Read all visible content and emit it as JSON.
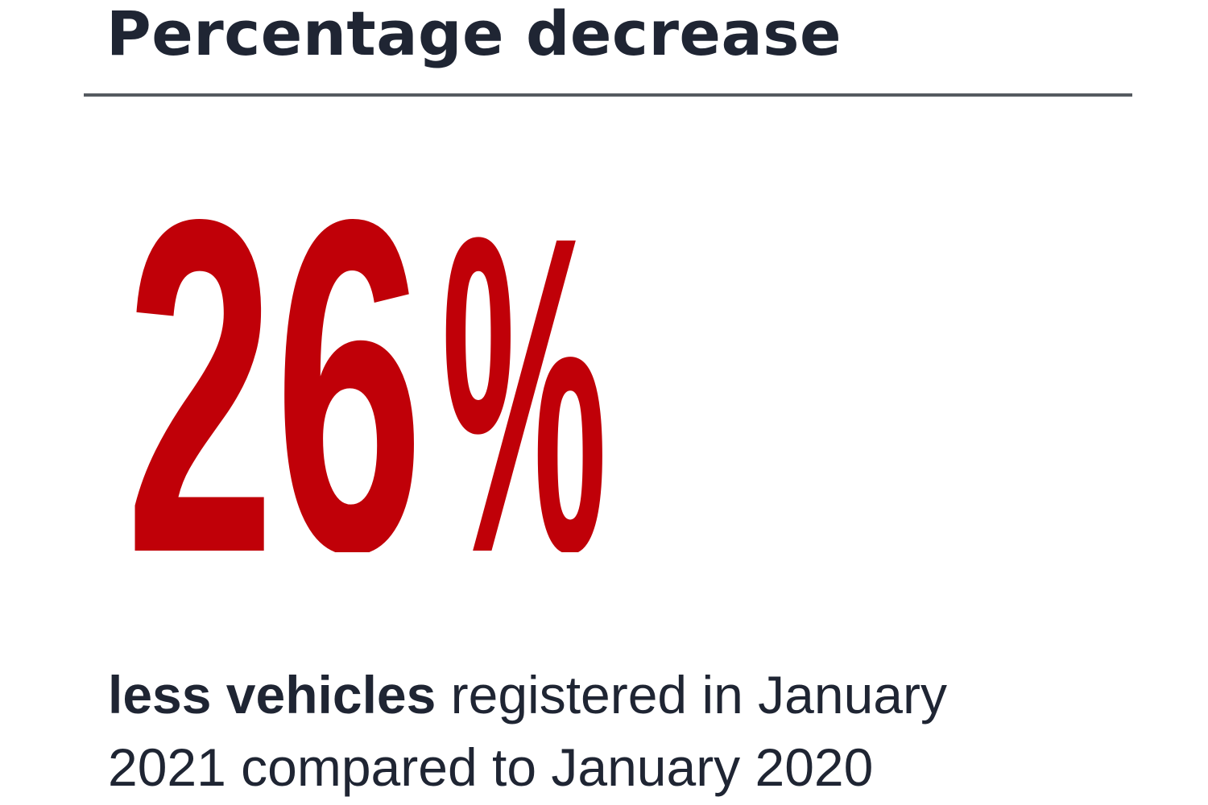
{
  "heading": "Percentage decrease",
  "stat": {
    "value": "26",
    "unit": "%"
  },
  "caption": {
    "bold_part": "less vehicles",
    "rest_line1": " registered in January",
    "rest_line2": "2021 compared to January 2020"
  },
  "colors": {
    "accent": "#c00008",
    "text": "#1f2533",
    "rule": "#555a60"
  }
}
